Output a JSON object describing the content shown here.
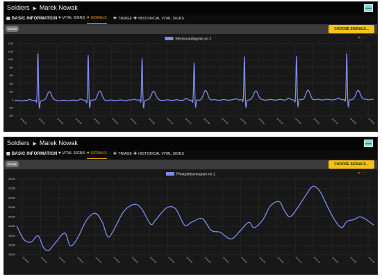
{
  "panels": [
    {
      "breadcrumb": {
        "root": "Soldiers",
        "name": "Marek Nowak"
      },
      "tabs": [
        {
          "label": "BASIC INFORMATION",
          "icon": "info-icon",
          "active": false
        },
        {
          "label": "VITAL SIGNS",
          "icon": "heart-icon",
          "active": false
        },
        {
          "label": "SIGNALS",
          "icon": "heart-pulse-icon",
          "active": true
        },
        {
          "label": "TRIAGE",
          "icon": "plus-icon",
          "active": false
        },
        {
          "label": "HISTORICAL VITAL SIGNS",
          "icon": "history-icon",
          "active": false
        }
      ],
      "signal_badge": "ECG01",
      "choose_button": "CHOOSE SIGNALS...",
      "counter": {
        "value": "0",
        "symbol": "+"
      },
      "chart_data": {
        "type": "line",
        "series": [
          {
            "name": "Electrocardiogram no 2",
            "color": "#7c8df0"
          }
        ],
        "yticks": [
          "1400",
          "1200",
          "1000",
          "800",
          "600",
          "400",
          "200",
          "0",
          "-200",
          "-400"
        ],
        "ylim": [
          -400,
          1400
        ],
        "xticks": [
          "13:56:30",
          "13:56:35",
          "13:56:40",
          "13:56:45",
          "13:56:50",
          "13:56:55",
          "13:57:00",
          "13:57:05",
          "13:57:10",
          "13:57:15",
          "13:57:20",
          "13:57:25",
          "13:57:30",
          "13:57:35",
          "13:57:40",
          "13:57:45",
          "13:57:50",
          "13:57:55",
          "13:58:00",
          "13:58:05"
        ],
        "beats": [
          {
            "t": 0.065,
            "peak": 1170
          },
          {
            "t": 0.205,
            "peak": 1130
          },
          {
            "t": 0.355,
            "peak": 1040
          },
          {
            "t": 0.5,
            "peak": 920
          },
          {
            "t": 0.64,
            "peak": 1070
          },
          {
            "t": 0.785,
            "peak": 1080
          },
          {
            "t": 0.925,
            "peak": 1140
          }
        ],
        "baseline_start": -20,
        "baseline_end": 10,
        "grid": true,
        "legend_position": "top-center"
      }
    },
    {
      "breadcrumb": {
        "root": "Soldiers",
        "name": "Marek Nowak"
      },
      "tabs": [
        {
          "label": "BASIC INFORMATION",
          "icon": "info-icon",
          "active": false
        },
        {
          "label": "VITAL SIGNS",
          "icon": "heart-icon",
          "active": false
        },
        {
          "label": "SIGNALS",
          "icon": "heart-pulse-icon",
          "active": true
        },
        {
          "label": "TRIAGE",
          "icon": "plus-icon",
          "active": false
        },
        {
          "label": "HISTORICAL VITAL SIGNS",
          "icon": "history-icon",
          "active": false
        }
      ],
      "signal_badge": "PPG01",
      "choose_button": "CHOOSE SIGNALS...",
      "counter": {
        "value": "0",
        "symbol": "+"
      },
      "chart_data": {
        "type": "line",
        "series": [
          {
            "name": "Photopletysmogram no 1",
            "color": "#7c8df0"
          }
        ],
        "yticks": [
          "-32,000",
          "-32,500",
          "-33,000",
          "-33,500",
          "-34,000",
          "-34,500",
          "-35,000",
          "-35,500",
          "-36,000"
        ],
        "ylim": [
          -36000,
          -31800
        ],
        "xticks": [
          "13:59:55",
          "14:00:00",
          "14:00:05",
          "14:00:10",
          "14:00:15",
          "14:00:20",
          "14:00:25",
          "14:00:30",
          "14:00:35",
          "14:00:40",
          "14:00:45",
          "14:00:50",
          "14:00:55",
          "14:01:00",
          "14:01:05",
          "14:01:10",
          "14:01:15",
          "14:01:20",
          "14:01:25",
          "14:01:30"
        ],
        "points": [
          [
            0.0,
            -34400
          ],
          [
            0.02,
            -35150
          ],
          [
            0.04,
            -35300
          ],
          [
            0.06,
            -34950
          ],
          [
            0.075,
            -35600
          ],
          [
            0.09,
            -35750
          ],
          [
            0.11,
            -35300
          ],
          [
            0.135,
            -34800
          ],
          [
            0.15,
            -35500
          ],
          [
            0.17,
            -35100
          ],
          [
            0.195,
            -34100
          ],
          [
            0.22,
            -33700
          ],
          [
            0.24,
            -34200
          ],
          [
            0.255,
            -35000
          ],
          [
            0.27,
            -34700
          ],
          [
            0.3,
            -33600
          ],
          [
            0.33,
            -33200
          ],
          [
            0.35,
            -33450
          ],
          [
            0.375,
            -34300
          ],
          [
            0.39,
            -34050
          ],
          [
            0.42,
            -33400
          ],
          [
            0.445,
            -33450
          ],
          [
            0.47,
            -34350
          ],
          [
            0.49,
            -34200
          ],
          [
            0.52,
            -34000
          ],
          [
            0.545,
            -34650
          ],
          [
            0.57,
            -34750
          ],
          [
            0.59,
            -35050
          ],
          [
            0.605,
            -35100
          ],
          [
            0.625,
            -34700
          ],
          [
            0.65,
            -34200
          ],
          [
            0.665,
            -34500
          ],
          [
            0.69,
            -34050
          ],
          [
            0.71,
            -33300
          ],
          [
            0.735,
            -33050
          ],
          [
            0.75,
            -33550
          ],
          [
            0.765,
            -33900
          ],
          [
            0.785,
            -33450
          ],
          [
            0.81,
            -32700
          ],
          [
            0.83,
            -32200
          ],
          [
            0.85,
            -32500
          ],
          [
            0.87,
            -33300
          ],
          [
            0.89,
            -34050
          ],
          [
            0.91,
            -34500
          ],
          [
            0.925,
            -34150
          ],
          [
            0.945,
            -34050
          ],
          [
            0.96,
            -33900
          ],
          [
            0.975,
            -34000
          ],
          [
            1.0,
            -34350
          ]
        ],
        "grid": true,
        "legend_position": "top-center"
      }
    }
  ]
}
